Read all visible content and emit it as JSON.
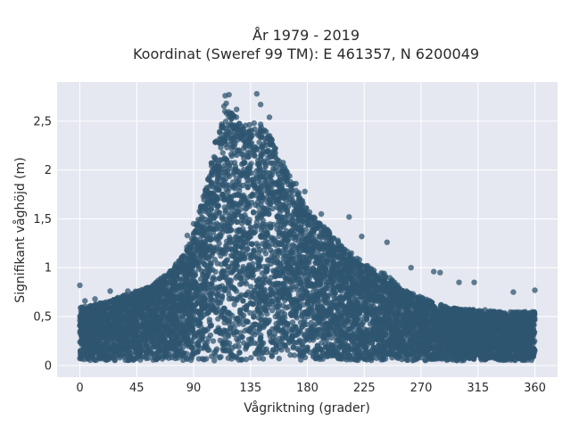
{
  "chart_data": {
    "type": "scatter",
    "title_line1": "År 1979 - 2019",
    "title_line2": "Koordinat (Sweref 99 TM): E 461357, N 6200049",
    "xlabel": "Vågriktning (grader)",
    "ylabel": "Signifikant våghöjd (m)",
    "xlim": [
      -18,
      378
    ],
    "ylim": [
      -0.12,
      2.9
    ],
    "grid": true,
    "marker_color": "#2f5670",
    "background": "#e5e8f0",
    "x_ticks": [
      {
        "value": 0,
        "label": "0"
      },
      {
        "value": 45,
        "label": "45"
      },
      {
        "value": 90,
        "label": "90"
      },
      {
        "value": 135,
        "label": "135"
      },
      {
        "value": 180,
        "label": "180"
      },
      {
        "value": 225,
        "label": "225"
      },
      {
        "value": 270,
        "label": "270"
      },
      {
        "value": 315,
        "label": "315"
      },
      {
        "value": 360,
        "label": "360"
      }
    ],
    "y_ticks": [
      {
        "value": 0,
        "label": "0"
      },
      {
        "value": 0.5,
        "label": "0,5"
      },
      {
        "value": 1,
        "label": "1"
      },
      {
        "value": 1.5,
        "label": "1,5"
      },
      {
        "value": 2,
        "label": "2"
      },
      {
        "value": 2.5,
        "label": "2,5"
      }
    ],
    "envelope": {
      "direction": [
        0,
        10,
        20,
        30,
        40,
        50,
        60,
        70,
        80,
        90,
        100,
        110,
        115,
        120,
        130,
        140,
        150,
        160,
        170,
        180,
        190,
        200,
        210,
        220,
        230,
        240,
        250,
        260,
        270,
        280,
        290,
        300,
        310,
        320,
        330,
        340,
        350,
        360
      ],
      "max_height": [
        0.6,
        0.62,
        0.65,
        0.7,
        0.75,
        0.78,
        0.85,
        0.95,
        1.1,
        1.35,
        1.85,
        2.45,
        2.7,
        2.6,
        2.45,
        2.5,
        2.4,
        2.1,
        1.85,
        1.6,
        1.45,
        1.35,
        1.2,
        1.1,
        1.0,
        0.95,
        0.85,
        0.75,
        0.7,
        0.65,
        0.6,
        0.58,
        0.57,
        0.57,
        0.55,
        0.55,
        0.55,
        0.55
      ],
      "min_height": 0.05
    },
    "outliers": [
      {
        "x": 0,
        "y": 0.82
      },
      {
        "x": 4,
        "y": 0.66
      },
      {
        "x": 12,
        "y": 0.68
      },
      {
        "x": 24,
        "y": 0.76
      },
      {
        "x": 38,
        "y": 0.76
      },
      {
        "x": 62,
        "y": 0.87
      },
      {
        "x": 85,
        "y": 1.33
      },
      {
        "x": 90,
        "y": 1.45
      },
      {
        "x": 115,
        "y": 2.76
      },
      {
        "x": 118,
        "y": 2.77
      },
      {
        "x": 124,
        "y": 2.62
      },
      {
        "x": 140,
        "y": 2.78
      },
      {
        "x": 143,
        "y": 2.67
      },
      {
        "x": 150,
        "y": 2.54
      },
      {
        "x": 171,
        "y": 1.86
      },
      {
        "x": 178,
        "y": 1.78
      },
      {
        "x": 191,
        "y": 1.55
      },
      {
        "x": 213,
        "y": 1.52
      },
      {
        "x": 223,
        "y": 1.32
      },
      {
        "x": 243,
        "y": 1.26
      },
      {
        "x": 262,
        "y": 1.0
      },
      {
        "x": 280,
        "y": 0.96
      },
      {
        "x": 285,
        "y": 0.95
      },
      {
        "x": 300,
        "y": 0.85
      },
      {
        "x": 312,
        "y": 0.85
      },
      {
        "x": 343,
        "y": 0.75
      },
      {
        "x": 360,
        "y": 0.77
      }
    ]
  }
}
